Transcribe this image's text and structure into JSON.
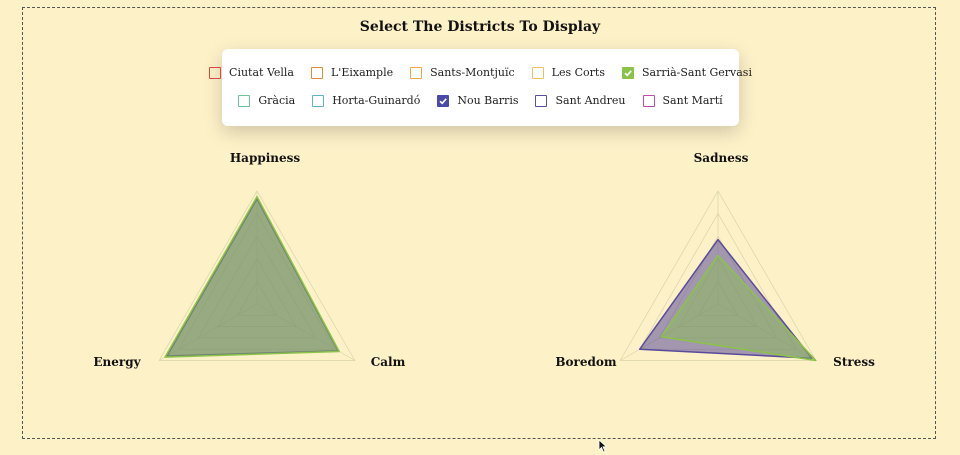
{
  "header": {
    "title": "Select The Districts To Display"
  },
  "legend": {
    "rows": [
      [
        {
          "label": "Ciutat Vella",
          "color": "#d9474b",
          "checked": false
        },
        {
          "label": "L'Eixample",
          "color": "#e08a3a",
          "checked": false
        },
        {
          "label": "Sants-Montjuïc",
          "color": "#e8a94b",
          "checked": false
        },
        {
          "label": "Les Corts",
          "color": "#ecc35c",
          "checked": false
        },
        {
          "label": "Sarrià-Sant Gervasi",
          "color": "#8bc34a",
          "checked": true
        }
      ],
      [
        {
          "label": "Gràcia",
          "color": "#6fbf9a",
          "checked": false
        },
        {
          "label": "Horta-Guinardó",
          "color": "#5fb3c8",
          "checked": false
        },
        {
          "label": "Nou Barris",
          "color": "#4a4aa8",
          "checked": true
        },
        {
          "label": "Sant Andreu",
          "color": "#5c4ea3",
          "checked": false
        },
        {
          "label": "Sant Martí",
          "color": "#c24aa8",
          "checked": false
        }
      ]
    ]
  },
  "chart_data": [
    {
      "type": "radar",
      "axes": [
        "Happiness",
        "Calm",
        "Energy"
      ],
      "max": 1,
      "grid_levels": 5,
      "series": [
        {
          "name": "Nou Barris",
          "values": [
            0.93,
            0.83,
            0.92
          ],
          "color": "#5a4b9a"
        },
        {
          "name": "Sarrià-Sant Gervasi",
          "values": [
            0.95,
            0.84,
            0.94
          ],
          "color": "#8bc34a"
        }
      ]
    },
    {
      "type": "radar",
      "axes": [
        "Sadness",
        "Stress",
        "Boredom"
      ],
      "max": 1,
      "grid_levels": 5,
      "series": [
        {
          "name": "Nou Barris",
          "values": [
            0.57,
            0.96,
            0.8
          ],
          "color": "#5a4b9a"
        },
        {
          "name": "Sarrià-Sant Gervasi",
          "values": [
            0.43,
            1.0,
            0.58
          ],
          "color": "#8bc34a"
        }
      ]
    }
  ]
}
